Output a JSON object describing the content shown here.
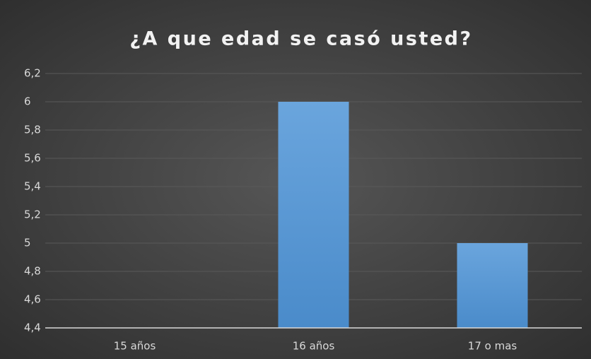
{
  "chart_data": {
    "type": "bar",
    "title": "¿A que edad se casó usted?",
    "categories": [
      "15 años",
      "16 años",
      "17 o mas"
    ],
    "values": [
      4.4,
      6,
      5
    ],
    "color": "#5b9bd5",
    "ylim": [
      4.4,
      6.2
    ],
    "yticks": [
      {
        "value": 4.4,
        "label": "4,4"
      },
      {
        "value": 4.6,
        "label": "4,6"
      },
      {
        "value": 4.8,
        "label": "4,8"
      },
      5,
      {
        "value": 5.2,
        "label": "5,2"
      },
      {
        "value": 5.4,
        "label": "5,4"
      },
      {
        "value": 5.6,
        "label": "5,6"
      },
      {
        "value": 5.8,
        "label": "5,8"
      },
      6,
      {
        "value": 6.2,
        "label": "6,2"
      }
    ],
    "grid": true
  }
}
